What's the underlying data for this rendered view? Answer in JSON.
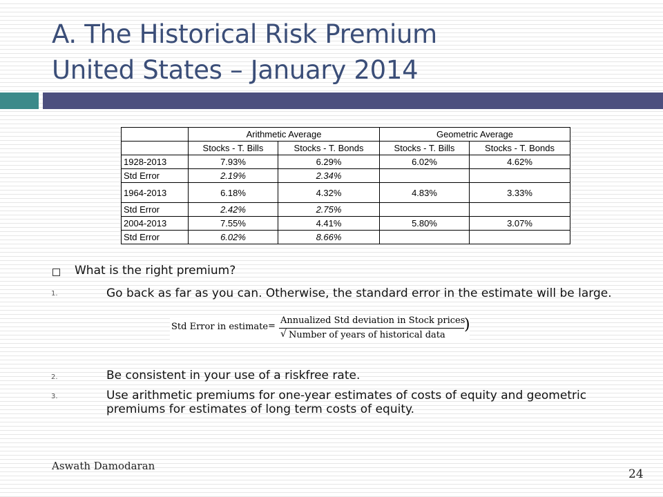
{
  "title_line1": "A. The Historical Risk Premium",
  "title_line2": "United States – January 2014",
  "table": {
    "group_headers": [
      "Arithmetic Average",
      "Geometric Average"
    ],
    "sub_headers": [
      "Stocks - T. Bills",
      "Stocks - T. Bonds",
      "Stocks - T. Bills",
      "Stocks - T. Bonds"
    ],
    "rows": [
      {
        "label": "1928-2013",
        "cells": [
          "7.93%",
          "6.29%",
          "6.02%",
          "4.62%"
        ]
      },
      {
        "label": "Std Error",
        "cells": [
          "2.19%",
          "2.34%",
          "",
          ""
        ]
      },
      {
        "label": "1964-2013",
        "cells": [
          "6.18%",
          "4.32%",
          "4.83%",
          "3.33%"
        ]
      },
      {
        "label": "Std Error",
        "cells": [
          "2.42%",
          "2.75%",
          "",
          ""
        ]
      },
      {
        "label": "2004-2013",
        "cells": [
          "7.55%",
          "4.41%",
          "5.80%",
          "3.07%"
        ]
      },
      {
        "label": "Std Error",
        "cells": [
          "6.02%",
          "8.66%",
          "",
          ""
        ]
      }
    ]
  },
  "question": "What is the right premium?",
  "items": [
    {
      "num": "1.",
      "text": "Go back as far as you can. Otherwise, the standard error in the estimate will be large."
    },
    {
      "num": "2.",
      "text": "Be consistent in your use of a riskfree rate."
    },
    {
      "num": "3.",
      "text": "Use arithmetic premiums for one-year estimates of costs of equity and geometric premiums for estimates of long term costs of equity."
    }
  ],
  "formula": {
    "lhs": "Std Error in estimate",
    "eq": "=",
    "numerator": "Annualized Std deviation in Stock prices",
    "denominator": "Number of years of historical data"
  },
  "author": "Aswath Damodaran",
  "page_number": "24"
}
